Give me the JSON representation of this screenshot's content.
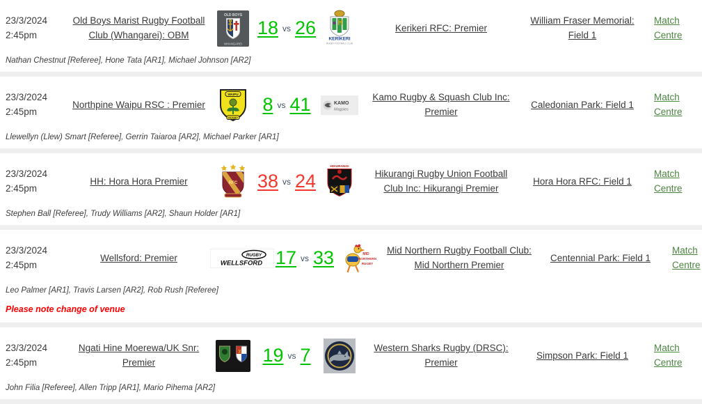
{
  "labels": {
    "vs": "vs",
    "match_centre": "Match Centre"
  },
  "colors": {
    "score_green": "#00c400",
    "score_red": "#f2382c",
    "link_dark": "#3a3a3a",
    "match_centre_green": "#4c8540",
    "note_red": "#ff0000",
    "divider_gray": "#efefef"
  },
  "matches": [
    {
      "date": "23/3/2024",
      "time": "2:45pm",
      "home_team": "Old Boys Marist Rugby Football Club (Whangarei): OBM",
      "home_logo": "obm",
      "home_score": "18",
      "away_score": "26",
      "score_color": "#00c400",
      "away_logo": "kerikeri",
      "away_team": "Kerikeri RFC: Premier",
      "venue": "William Fraser Memorial: Field 1",
      "officials": "Nathan Chestnut [Referee], Hone Tata [AR1], Michael Johnson [AR2]",
      "note": ""
    },
    {
      "date": "23/3/2024",
      "time": "2:45pm",
      "home_team": "Northpine Waipu RSC : Premier",
      "home_logo": "waipu",
      "home_score": "8",
      "away_score": "41",
      "score_color": "#00c400",
      "away_logo": "kamo",
      "away_team": "Kamo Rugby & Squash Club Inc: Premier",
      "venue": "Caledonian Park: Field 1",
      "officials": "Llewellyn (Llew) Smart [Referee], Gerrin Taiaroa [AR2], Michael Parker [AR1]",
      "note": ""
    },
    {
      "date": "23/3/2024",
      "time": "2:45pm",
      "home_team": "HH: Hora Hora Premier",
      "home_logo": "horahora",
      "home_score": "38",
      "away_score": "24",
      "score_color": "#f2382c",
      "away_logo": "hikurangi",
      "away_team": "Hikurangi Rugby Union Football Club Inc: Hikurangi Premier",
      "venue": "Hora Hora RFC: Field 1",
      "officials": "Stephen Ball [Referee], Trudy Williams [AR2], Shaun Holder [AR1]",
      "note": ""
    },
    {
      "date": "23/3/2024",
      "time": "2:45pm",
      "home_team": "Wellsford: Premier",
      "home_logo": "wellsford",
      "home_score": "17",
      "away_score": "33",
      "score_color": "#00c400",
      "away_logo": "midnorthern",
      "away_team": "Mid Northern Rugby Football Club: Mid Northern Premier",
      "venue": "Centennial Park: Field 1",
      "officials": "Leo Palmer [AR1], Travis Larsen [AR2], Rob Rush [Referee]",
      "note": "Please note change of venue"
    },
    {
      "date": "23/3/2024",
      "time": "2:45pm",
      "home_team": "Ngati Hine Moerewa/UK Snr: Premier",
      "home_logo": "ngatihine",
      "home_score": "19",
      "away_score": "7",
      "score_color": "#00c400",
      "away_logo": "sharks",
      "away_team": "Western Sharks Rugby (DRSC): Premier",
      "venue": "Simpson Park: Field 1",
      "officials": "John Filia [Referee], Allen Tripp [AR1], Mario Pihema [AR2]",
      "note": ""
    }
  ]
}
